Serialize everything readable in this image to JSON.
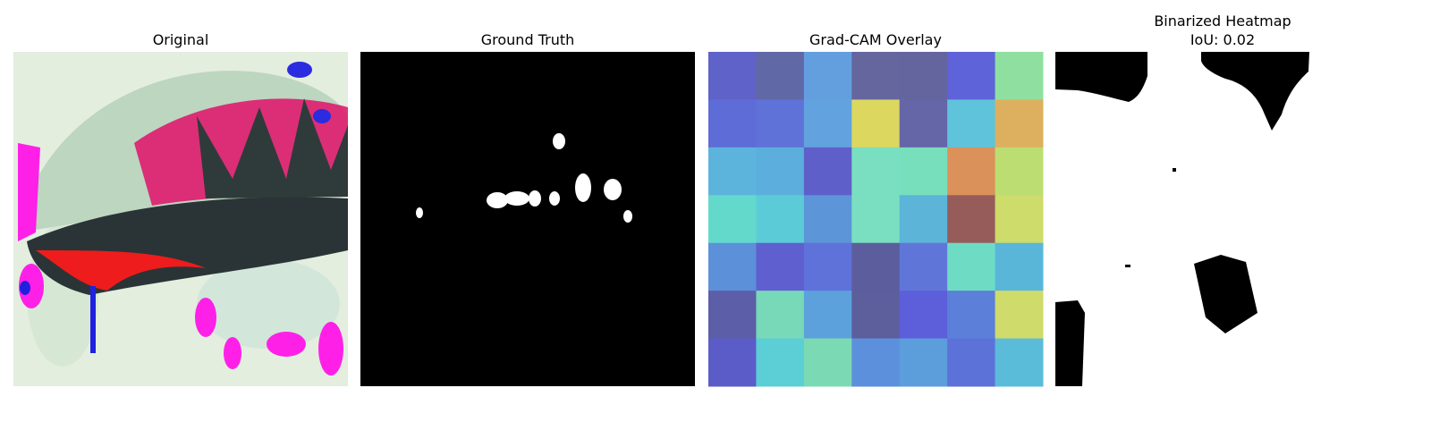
{
  "panels": [
    {
      "title": [
        "Original"
      ]
    },
    {
      "title": [
        "Ground Truth"
      ]
    },
    {
      "title": [
        "Grad-CAM Overlay"
      ],
      "cells": [
        [
          "#5f62c8",
          "#6168a6",
          "#639fdf",
          "#65669e",
          "#64659e",
          "#5f63d9",
          "#8fe0a0"
        ],
        [
          "#5e6cd8",
          "#5f72d8",
          "#62a2df",
          "#dcd75f",
          "#6466a8",
          "#5fc3db",
          "#dcb05f"
        ],
        [
          "#5cb4dc",
          "#5caedd",
          "#5f5fc9",
          "#79dfc0",
          "#78dfbd",
          "#db915a",
          "#bcdd72"
        ],
        [
          "#63d9cc",
          "#5ccbd8",
          "#5c95d8",
          "#79dfc0",
          "#5cb5d9",
          "#965c5a",
          "#cddc6a"
        ],
        [
          "#5c90d9",
          "#5f5fd0",
          "#5f72d9",
          "#5c5d9c",
          "#5f76d8",
          "#6edbc4",
          "#5ab6d9"
        ],
        [
          "#5c5ea8",
          "#77d9b8",
          "#5ca0dc",
          "#5c5f9c",
          "#5c5fd9",
          "#5c7fd9",
          "#cfdb6a"
        ],
        [
          "#5c5cc8",
          "#5ccfd6",
          "#7bdab4",
          "#5c90dc",
          "#5c9ddc",
          "#5c72d9",
          "#5abcd9"
        ]
      ]
    },
    {
      "title": [
        "Binarized Heatmap",
        "IoU: 0.02"
      ]
    }
  ]
}
